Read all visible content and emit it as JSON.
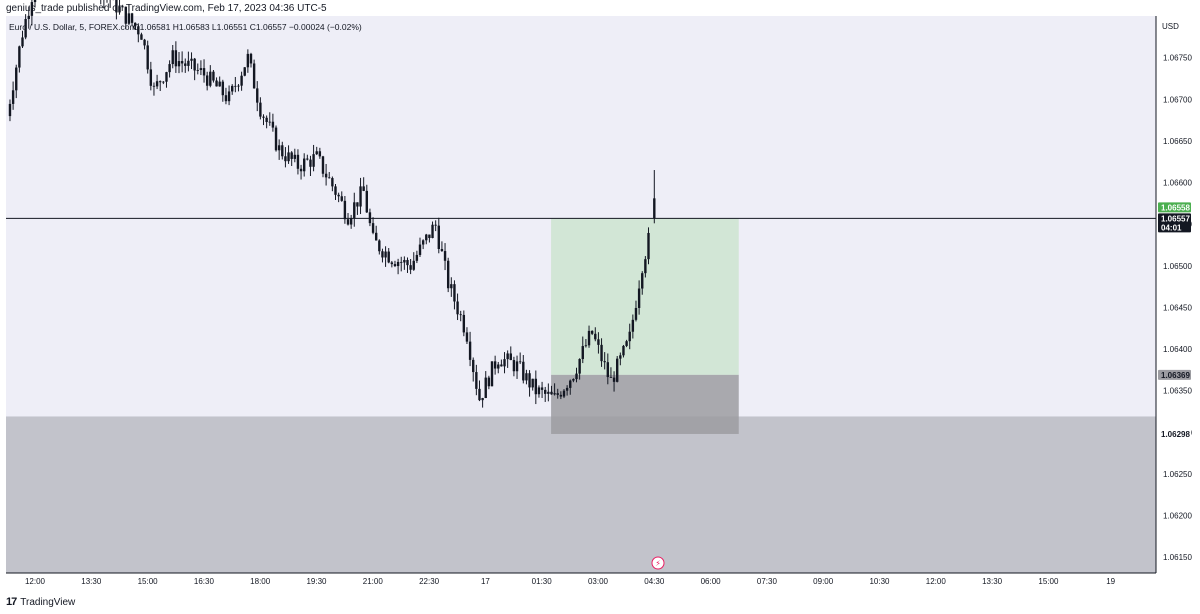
{
  "header": {
    "publisher": "genius_trade published on TradingView.com, Feb 17, 2023 04:36 UTC-5"
  },
  "legend": {
    "symbol": "Euro / U.S. Dollar, 5, FOREX.com",
    "ohlc": "O1.06581 H1.06583 L1.06551 C1.06557 −0.00024 (−0.02%)"
  },
  "footer": {
    "brand": "TradingView",
    "logo_glyph": "17"
  },
  "badge": {
    "icon": "lightning-badge-icon",
    "glyph": "⚡",
    "color": "#e91e63"
  },
  "colors": {
    "background": "#eeeef7",
    "candle": "#131722",
    "profit_zone": "#d2e6d6",
    "loss_zone": "#9c9ca1",
    "demand_zone": "#c2c3cb",
    "last_price_tag": "#4caf50"
  },
  "chart_data": {
    "type": "candlestick",
    "symbol": "Euro / U.S. Dollar, 5, FOREX.com",
    "currency_label": "USD",
    "x_labels": [
      "12:00",
      "13:30",
      "15:00",
      "16:30",
      "18:00",
      "19:30",
      "21:00",
      "22:30",
      "17",
      "01:30",
      "03:00",
      "04:30",
      "06:00",
      "07:30",
      "09:00",
      "10:30",
      "12:00",
      "13:30",
      "15:00",
      "19"
    ],
    "y_labels": [
      "1.06750",
      "1.06700",
      "1.06650",
      "1.06600",
      "1.06550",
      "1.06500",
      "1.06450",
      "1.06400",
      "1.06350",
      "1.06300",
      "1.06250",
      "1.06200",
      "1.06150"
    ],
    "ylim": [
      1.06131,
      1.068
    ],
    "price_path": [
      {
        "t": "11:15",
        "p": 1.0668
      },
      {
        "t": "11:40",
        "p": 1.0678
      },
      {
        "t": "12:00",
        "p": 1.0684
      },
      {
        "t": "12:45",
        "p": 1.0688
      },
      {
        "t": "14:50",
        "p": 1.0678
      },
      {
        "t": "15:10",
        "p": 1.0671
      },
      {
        "t": "15:40",
        "p": 1.0675
      },
      {
        "t": "16:30",
        "p": 1.0673
      },
      {
        "t": "17:10",
        "p": 1.067
      },
      {
        "t": "17:40",
        "p": 1.0675
      },
      {
        "t": "18:00",
        "p": 1.0669
      },
      {
        "t": "18:30",
        "p": 1.0664
      },
      {
        "t": "19:00",
        "p": 1.0662
      },
      {
        "t": "19:30",
        "p": 1.0663
      },
      {
        "t": "20:00",
        "p": 1.0659
      },
      {
        "t": "20:20",
        "p": 1.0656
      },
      {
        "t": "20:45",
        "p": 1.0659
      },
      {
        "t": "21:00",
        "p": 1.0653
      },
      {
        "t": "21:30",
        "p": 1.0651
      },
      {
        "t": "22:00",
        "p": 1.065
      },
      {
        "t": "22:40",
        "p": 1.0655
      },
      {
        "t": "23:00",
        "p": 1.0648
      },
      {
        "t": "23:30",
        "p": 1.0642
      },
      {
        "t": "23:50",
        "p": 1.0634
      },
      {
        "t": "00:20",
        "p": 1.0639
      },
      {
        "t": "00:50",
        "p": 1.0638
      },
      {
        "t": "01:20",
        "p": 1.0635
      },
      {
        "t": "01:50",
        "p": 1.0634
      },
      {
        "t": "02:20",
        "p": 1.0637
      },
      {
        "t": "02:50",
        "p": 1.0642
      },
      {
        "t": "03:20",
        "p": 1.0636
      },
      {
        "t": "03:50",
        "p": 1.0641
      },
      {
        "t": "04:10",
        "p": 1.065
      },
      {
        "t": "04:30",
        "p": 1.06557
      }
    ],
    "last_candle": {
      "o": 1.06581,
      "h": 1.06583,
      "l": 1.06551,
      "c": 1.06557
    },
    "current_price": {
      "value": 1.06557,
      "label": "1.06557",
      "countdown": "04:01"
    },
    "alt_price": {
      "label": "1.06558"
    },
    "position": {
      "type": "long",
      "entry": 1.06369,
      "entry_label": "1.06369",
      "stop": 1.06298,
      "stop_label": "1.06298",
      "target": 1.06557,
      "start_time": "01:45",
      "end_time": "06:45"
    },
    "demand_zone": {
      "top": 1.06319,
      "bottom": 1.06131
    },
    "grid": false
  }
}
